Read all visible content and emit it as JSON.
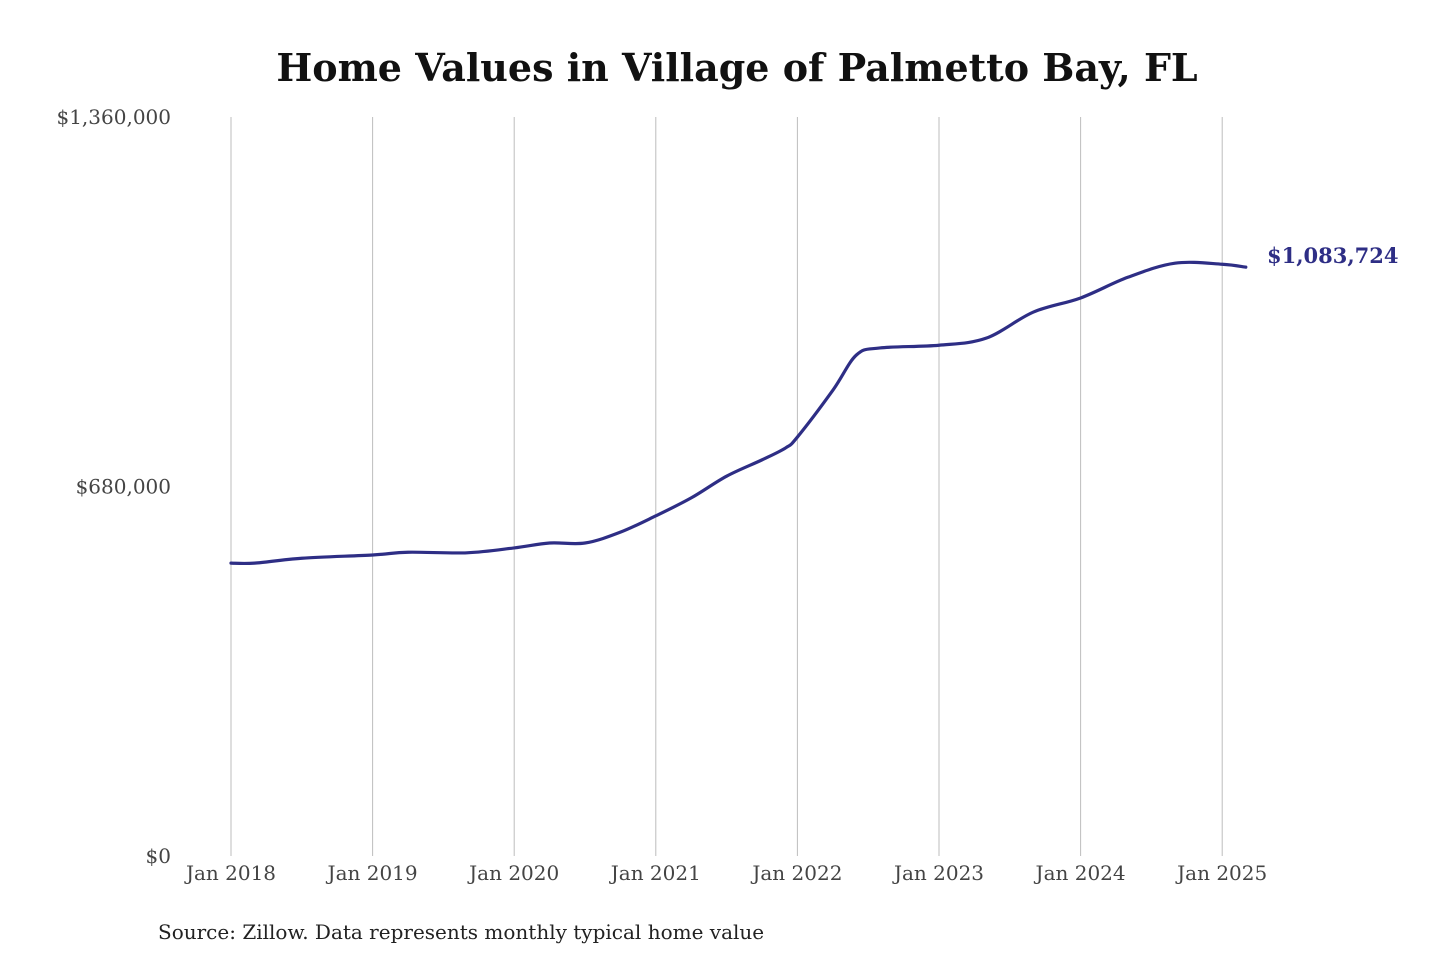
{
  "chart_data": {
    "type": "line",
    "title": "Home Values in Village of Palmetto Bay, FL",
    "xlabel": "",
    "ylabel": "",
    "ylim": [
      0,
      1360000
    ],
    "y_ticks": [
      {
        "value": 0,
        "label": "$0"
      },
      {
        "value": 680000,
        "label": "$680,000"
      },
      {
        "value": 1360000,
        "label": "$1,360,000"
      }
    ],
    "x_ticks": [
      {
        "month": "2018-01",
        "label": "Jan 2018"
      },
      {
        "month": "2019-01",
        "label": "Jan 2019"
      },
      {
        "month": "2020-01",
        "label": "Jan 2020"
      },
      {
        "month": "2021-01",
        "label": "Jan 2021"
      },
      {
        "month": "2022-01",
        "label": "Jan 2022"
      },
      {
        "month": "2023-01",
        "label": "Jan 2023"
      },
      {
        "month": "2024-01",
        "label": "Jan 2024"
      },
      {
        "month": "2025-01",
        "label": "Jan 2025"
      }
    ],
    "grid": "vertical",
    "series": [
      {
        "name": "Typical home value",
        "color": "#2e2e85",
        "x": [
          "2018-01",
          "2018-03",
          "2018-07",
          "2019-01",
          "2019-04",
          "2019-09",
          "2020-01",
          "2020-04",
          "2020-07",
          "2020-10",
          "2021-01",
          "2021-04",
          "2021-07",
          "2021-10",
          "2021-12",
          "2022-01",
          "2022-04",
          "2022-06",
          "2022-08",
          "2023-01",
          "2023-05",
          "2023-09",
          "2024-01",
          "2024-05",
          "2024-09",
          "2025-01",
          "2025-03"
        ],
        "values": [
          539000,
          539000,
          548000,
          554000,
          559000,
          558000,
          567000,
          576000,
          576000,
          596000,
          626000,
          659000,
          699000,
          729000,
          751000,
          771000,
          857000,
          922000,
          935000,
          940000,
          953000,
          1001000,
          1027000,
          1065000,
          1091000,
          1089000,
          1083724
        ]
      }
    ],
    "end_label": "$1,083,724",
    "source": "Source: Zillow. Data represents monthly typical home value"
  }
}
